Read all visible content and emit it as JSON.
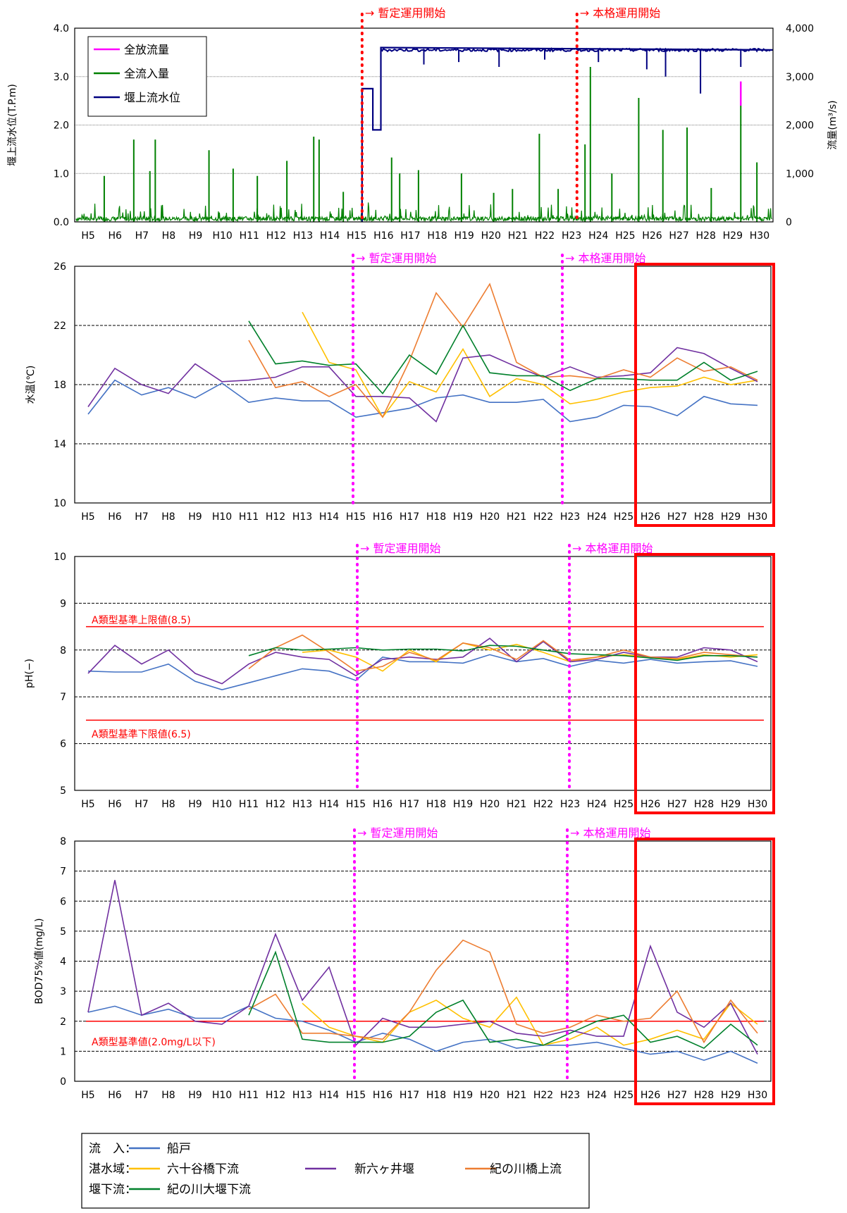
{
  "colors": {
    "funato": "#4472c4",
    "rokujuya": "#ffc000",
    "shinrokka": "#7030a0",
    "kinokawa_bashi": "#ed7d31",
    "ozeki_down": "#00802b",
    "outflow": "#ff00ff",
    "inflow": "#008000",
    "level": "#000080",
    "milestone_top": "#ff0000",
    "milestone": "#ff00ff",
    "standard": "#ff0000",
    "highlight": "#ff0000"
  },
  "milestones": {
    "provisional": "→ 暫定運用開始",
    "full": "→ 本格運用開始"
  },
  "chart_data": [
    {
      "id": "flow",
      "type": "line",
      "ylabel": "堰上流水位(T.P.m)",
      "y2label": "流量(m³/s)",
      "ylim": [
        0,
        4.0
      ],
      "y2lim": [
        0,
        4000
      ],
      "y_ticks": [
        "0.0",
        "1.0",
        "2.0",
        "3.0",
        "4.0"
      ],
      "y2_ticks": [
        "0",
        "1,000",
        "2,000",
        "3,000",
        "4,000"
      ],
      "x_ticks": [
        "H5",
        "H6",
        "H7",
        "H8",
        "H9",
        "H10",
        "H11",
        "H12",
        "H13",
        "H14",
        "H15",
        "H16",
        "H17",
        "H18",
        "H19",
        "H20",
        "H21",
        "H22",
        "H23",
        "H24",
        "H25",
        "H26",
        "H27",
        "H28",
        "H29",
        "H30"
      ],
      "legend": [
        "全放流量",
        "全流入量",
        "堰上流水位"
      ],
      "inflow_peaks": [
        [
          5.6,
          950
        ],
        [
          6.7,
          1700
        ],
        [
          7.5,
          1700
        ],
        [
          7.3,
          1050
        ],
        [
          9.5,
          1480
        ],
        [
          10.4,
          1100
        ],
        [
          11.3,
          950
        ],
        [
          12.4,
          1260
        ],
        [
          13.4,
          1760
        ],
        [
          13.6,
          1700
        ],
        [
          14.5,
          620
        ],
        [
          15.2,
          1620
        ],
        [
          16.3,
          1330
        ],
        [
          16.6,
          1000
        ],
        [
          17.3,
          1070
        ],
        [
          18.9,
          1000
        ],
        [
          20.1,
          600
        ],
        [
          20.8,
          680
        ],
        [
          21.8,
          1820
        ],
        [
          22.5,
          680
        ],
        [
          23.5,
          1600
        ],
        [
          23.7,
          3200
        ],
        [
          24.5,
          1000
        ],
        [
          25.5,
          2560
        ],
        [
          26.4,
          1900
        ],
        [
          27.3,
          1950
        ],
        [
          28.2,
          700
        ],
        [
          29.3,
          2600
        ],
        [
          29.9,
          1230
        ]
      ],
      "outflow_peaks": [
        [
          29.3,
          2900
        ]
      ],
      "level_steps": [
        [
          15.2,
          0.0
        ],
        [
          15.2,
          2.75
        ],
        [
          15.6,
          2.75
        ],
        [
          15.6,
          1.9
        ],
        [
          15.9,
          1.9
        ],
        [
          15.9,
          3.6
        ],
        [
          30.5,
          3.55
        ]
      ],
      "level_dips": [
        [
          17.5,
          3.25
        ],
        [
          18.8,
          3.3
        ],
        [
          20.3,
          3.2
        ],
        [
          22.0,
          3.35
        ],
        [
          24.0,
          3.3
        ],
        [
          25.8,
          3.15
        ],
        [
          26.5,
          3.0
        ],
        [
          27.8,
          2.65
        ],
        [
          29.3,
          3.2
        ]
      ]
    },
    {
      "id": "temp",
      "type": "line",
      "ylabel": "水温(℃)",
      "ylim": [
        10,
        26
      ],
      "y_ticks": [
        "10",
        "14",
        "18",
        "22",
        "26"
      ],
      "x": [
        "H5",
        "H6",
        "H7",
        "H8",
        "H9",
        "H10",
        "H11",
        "H12",
        "H13",
        "H14",
        "H15",
        "H16",
        "H17",
        "H18",
        "H19",
        "H20",
        "H21",
        "H22",
        "H23",
        "H24",
        "H25",
        "H26",
        "H27",
        "H28",
        "H29",
        "H30"
      ],
      "series": [
        {
          "name": "船戸",
          "key": "funato",
          "values": [
            16.0,
            18.3,
            17.3,
            17.8,
            17.1,
            18.1,
            16.8,
            17.1,
            16.9,
            16.9,
            15.8,
            16.1,
            16.4,
            17.1,
            17.3,
            16.8,
            16.8,
            17.0,
            15.5,
            15.8,
            16.6,
            16.5,
            15.9,
            17.2,
            16.7,
            16.6
          ]
        },
        {
          "name": "六十谷橋下流",
          "key": "rokujuya",
          "values": [
            null,
            null,
            null,
            null,
            null,
            null,
            null,
            null,
            22.9,
            19.5,
            19.0,
            15.8,
            18.2,
            17.5,
            20.4,
            17.2,
            18.4,
            18.0,
            16.7,
            17.0,
            17.5,
            17.8,
            17.9,
            18.5,
            18.0,
            18.3
          ]
        },
        {
          "name": "新六ヶ井堰",
          "key": "shinrokka",
          "values": [
            16.5,
            19.1,
            18.0,
            17.4,
            19.4,
            18.2,
            18.3,
            18.5,
            19.2,
            19.2,
            17.2,
            17.2,
            17.1,
            15.5,
            19.8,
            20.0,
            19.2,
            18.5,
            19.2,
            18.5,
            18.6,
            18.8,
            20.5,
            20.1,
            19.1,
            18.2
          ]
        },
        {
          "name": "紀の川橋上流",
          "key": "kinokawa_bashi",
          "values": [
            null,
            null,
            null,
            null,
            null,
            null,
            21.0,
            17.8,
            18.2,
            17.2,
            18.0,
            15.8,
            19.6,
            24.2,
            21.9,
            24.8,
            19.5,
            18.5,
            18.6,
            18.4,
            19.0,
            18.5,
            19.8,
            18.9,
            19.2,
            18.3
          ]
        },
        {
          "name": "紀の川大堰下流",
          "key": "ozeki_down",
          "values": [
            null,
            null,
            null,
            null,
            null,
            null,
            22.3,
            19.4,
            19.6,
            19.3,
            19.4,
            17.4,
            20.0,
            18.7,
            22.0,
            18.8,
            18.6,
            18.6,
            17.6,
            18.4,
            18.4,
            18.3,
            18.3,
            19.5,
            18.3,
            18.9
          ]
        }
      ],
      "highlight_from": "H26"
    },
    {
      "id": "ph",
      "type": "line",
      "ylabel": "pH(−)",
      "ylim": [
        5,
        10
      ],
      "y_ticks": [
        "5",
        "6",
        "7",
        "8",
        "9",
        "10"
      ],
      "x": [
        "H5",
        "H6",
        "H7",
        "H8",
        "H9",
        "H10",
        "H11",
        "H12",
        "H13",
        "H14",
        "H15",
        "H16",
        "H17",
        "H18",
        "H19",
        "H20",
        "H21",
        "H22",
        "H23",
        "H24",
        "H25",
        "H26",
        "H27",
        "H28",
        "H29",
        "H30"
      ],
      "standards": [
        {
          "label": "A類型基準上限値(8.5)",
          "value": 8.5
        },
        {
          "label": "A類型基準下限値(6.5)",
          "value": 6.5
        }
      ],
      "series": [
        {
          "name": "船戸",
          "key": "funato",
          "values": [
            7.55,
            7.53,
            7.53,
            7.7,
            7.33,
            7.15,
            7.3,
            7.45,
            7.6,
            7.55,
            7.35,
            7.85,
            7.75,
            7.75,
            7.72,
            7.9,
            7.75,
            7.82,
            7.65,
            7.78,
            7.72,
            7.8,
            7.72,
            7.75,
            7.77,
            7.65
          ]
        },
        {
          "name": "六十谷橋下流",
          "key": "rokujuya",
          "values": [
            null,
            null,
            null,
            null,
            null,
            null,
            null,
            null,
            7.95,
            8.0,
            7.85,
            7.55,
            8.0,
            7.75,
            8.15,
            8.0,
            8.12,
            7.95,
            7.75,
            7.85,
            7.9,
            7.85,
            7.8,
            7.9,
            7.85,
            7.9
          ]
        },
        {
          "name": "新六ヶ井堰",
          "key": "shinrokka",
          "values": [
            7.5,
            8.1,
            7.7,
            8.0,
            7.5,
            7.28,
            7.7,
            7.95,
            7.85,
            7.8,
            7.45,
            7.8,
            7.85,
            7.8,
            7.85,
            8.25,
            7.75,
            8.18,
            7.75,
            7.8,
            7.95,
            7.85,
            7.85,
            8.05,
            8.0,
            7.75
          ]
        },
        {
          "name": "紀の川橋上流",
          "key": "kinokawa_bashi",
          "values": [
            null,
            null,
            null,
            null,
            null,
            null,
            7.6,
            8.05,
            8.32,
            7.95,
            7.55,
            7.65,
            7.95,
            7.78,
            8.15,
            8.05,
            7.8,
            8.2,
            7.78,
            7.85,
            8.0,
            7.85,
            7.82,
            7.95,
            7.9,
            7.85
          ]
        },
        {
          "name": "紀の川大堰下流",
          "key": "ozeki_down",
          "values": [
            null,
            null,
            null,
            null,
            null,
            null,
            7.88,
            8.05,
            8.0,
            8.02,
            8.05,
            8.0,
            8.02,
            8.02,
            7.98,
            8.1,
            8.08,
            8.0,
            7.92,
            7.9,
            7.88,
            7.83,
            7.78,
            7.88,
            7.88,
            7.85
          ]
        }
      ],
      "highlight_from": "H26"
    },
    {
      "id": "bod",
      "type": "line",
      "ylabel": "BOD75%値(mg/L)",
      "ylim": [
        0,
        8
      ],
      "y_ticks": [
        "0",
        "1",
        "2",
        "3",
        "4",
        "5",
        "6",
        "7",
        "8"
      ],
      "x": [
        "H5",
        "H6",
        "H7",
        "H8",
        "H9",
        "H10",
        "H11",
        "H12",
        "H13",
        "H14",
        "H15",
        "H16",
        "H17",
        "H18",
        "H19",
        "H20",
        "H21",
        "H22",
        "H23",
        "H24",
        "H25",
        "H26",
        "H27",
        "H28",
        "H29",
        "H30"
      ],
      "standards": [
        {
          "label": "A類型基準値(2.0mg/L以下)",
          "value": 2.0
        }
      ],
      "series": [
        {
          "name": "船戸",
          "key": "funato",
          "values": [
            2.3,
            2.5,
            2.2,
            2.4,
            2.1,
            2.1,
            2.5,
            2.1,
            2.0,
            1.7,
            1.3,
            1.6,
            1.4,
            1.0,
            1.3,
            1.4,
            1.1,
            1.2,
            1.2,
            1.3,
            1.1,
            0.9,
            1.0,
            0.7,
            1.0,
            0.6
          ]
        },
        {
          "name": "六十谷橋下流",
          "key": "rokujuya",
          "values": [
            null,
            null,
            null,
            null,
            null,
            null,
            null,
            null,
            2.6,
            1.8,
            1.5,
            1.3,
            2.3,
            2.7,
            2.1,
            1.8,
            2.8,
            1.2,
            1.4,
            1.8,
            1.2,
            1.4,
            1.7,
            1.4,
            2.6,
            1.9
          ]
        },
        {
          "name": "新六ヶ井堰",
          "key": "shinrokka",
          "values": [
            2.3,
            6.7,
            2.2,
            2.6,
            2.0,
            1.9,
            2.5,
            4.9,
            2.7,
            3.8,
            1.2,
            2.1,
            1.8,
            1.8,
            1.9,
            2.0,
            1.6,
            1.5,
            1.7,
            1.5,
            1.5,
            4.5,
            2.3,
            1.8,
            2.6,
            0.9
          ]
        },
        {
          "name": "紀の川橋上流",
          "key": "kinokawa_bashi",
          "values": [
            null,
            null,
            null,
            null,
            null,
            null,
            2.4,
            2.9,
            1.6,
            1.6,
            1.5,
            1.4,
            2.3,
            3.7,
            4.7,
            4.3,
            1.9,
            1.6,
            1.8,
            2.2,
            2.0,
            2.1,
            3.0,
            1.3,
            2.7,
            1.6
          ]
        },
        {
          "name": "紀の川大堰下流",
          "key": "ozeki_down",
          "values": [
            null,
            null,
            null,
            null,
            null,
            null,
            2.2,
            4.3,
            1.4,
            1.3,
            1.3,
            1.3,
            1.5,
            2.3,
            2.7,
            1.3,
            1.4,
            1.2,
            1.6,
            2.0,
            2.2,
            1.3,
            1.5,
            1.1,
            1.9,
            1.2
          ]
        }
      ],
      "highlight_from": "H26"
    }
  ],
  "legend": {
    "rows": [
      {
        "group": "流　入：",
        "entries": [
          {
            "label": "船戸",
            "key": "funato"
          }
        ]
      },
      {
        "group": "湛水域：",
        "entries": [
          {
            "label": "六十谷橋下流",
            "key": "rokujuya"
          },
          {
            "label": "新六ヶ井堰",
            "key": "shinrokka"
          },
          {
            "label": "紀の川橋上流",
            "key": "kinokawa_bashi"
          }
        ]
      },
      {
        "group": "堰下流：",
        "entries": [
          {
            "label": "紀の川大堰下流",
            "key": "ozeki_down"
          }
        ]
      }
    ]
  }
}
